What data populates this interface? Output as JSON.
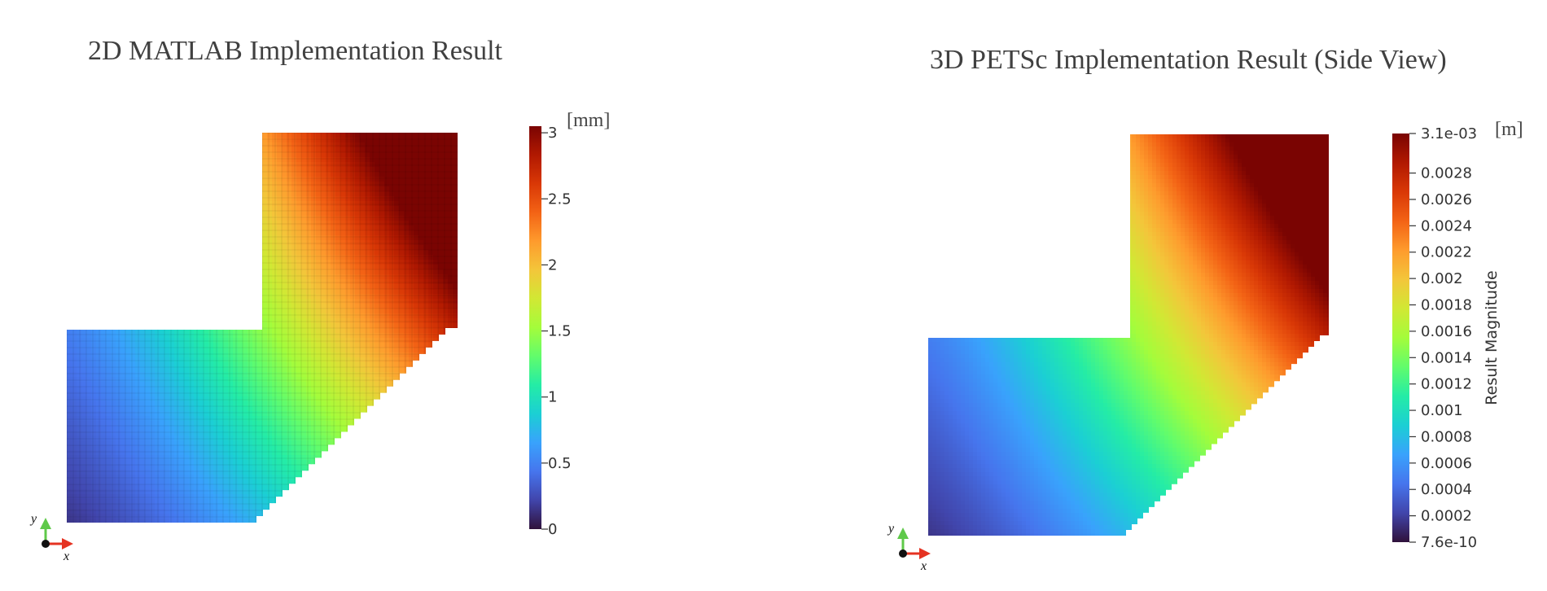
{
  "chart_data": [
    {
      "type": "heatmap",
      "title": "2D MATLAB Implementation Result",
      "colorbar": {
        "unit": "[mm]",
        "range": [
          0,
          3.05
        ],
        "ticks": [
          0,
          0.5,
          1,
          1.5,
          2,
          2.5,
          3
        ],
        "tick_labels": [
          "0",
          "0.5",
          "1",
          "1.5",
          "2",
          "2.5",
          "3"
        ],
        "title": ""
      },
      "colormap": "turbo",
      "field_range": [
        0,
        3.05
      ],
      "mesh_grid": true,
      "axis_triad": [
        "y",
        "x"
      ]
    },
    {
      "type": "heatmap",
      "title": "3D PETSc Implementation Result (Side View)",
      "colorbar": {
        "unit": "[m]",
        "range": [
          7.6e-10,
          0.0031
        ],
        "ticks": [
          0.0031,
          0.0028,
          0.0026,
          0.0024,
          0.0022,
          0.002,
          0.0018,
          0.0016,
          0.0014,
          0.0012,
          0.001,
          0.0008,
          0.0006,
          0.0004,
          0.0002,
          7.6e-10
        ],
        "tick_labels": [
          "3.1e-03",
          "0.0028",
          "0.0026",
          "0.0024",
          "0.0022",
          "0.002",
          "0.0018",
          "0.0016",
          "0.0014",
          "0.0012",
          "0.001",
          "0.0008",
          "0.0006",
          "0.0004",
          "0.0002",
          "7.6e-10"
        ],
        "title": "Result Magnitude"
      },
      "colormap": "turbo",
      "field_range": [
        7.6e-10,
        0.0031
      ],
      "mesh_grid": false,
      "axis_triad": [
        "y",
        "x"
      ]
    }
  ],
  "colors": {
    "turbo": [
      "#30123b",
      "#4145ab",
      "#4675ed",
      "#39a2fc",
      "#1bcfd4",
      "#24eca6",
      "#61fc6c",
      "#a4fc3b",
      "#d1e834",
      "#f3c63a",
      "#fe9b2d",
      "#f36315",
      "#d93806",
      "#b11901",
      "#7a0402"
    ],
    "axis_x": "#e53322",
    "axis_y": "#5fc94a"
  }
}
